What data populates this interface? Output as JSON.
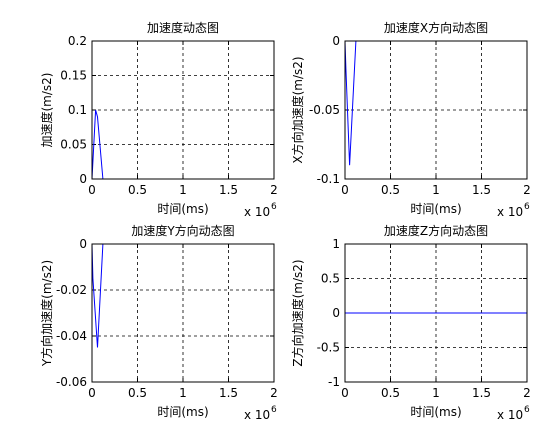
{
  "chart_data": [
    {
      "type": "line",
      "title": "加速度动态图",
      "xlabel": "时间(ms)",
      "ylabel": "加速度(m/s2)",
      "xlim": [
        0,
        2000000
      ],
      "ylim": [
        0,
        0.2
      ],
      "xticks": [
        "0",
        "0.5",
        "1",
        "1.5",
        "2"
      ],
      "x_exponent_base": "x 10",
      "x_exponent_power": "6",
      "yticks": [
        "0",
        "0.05",
        "0.1",
        "0.15",
        "0.2"
      ],
      "grid": true,
      "series": [
        {
          "color": "#0000ff",
          "x": [
            0,
            40000,
            60000,
            120000,
            2000000
          ],
          "y": [
            0,
            0.1,
            0.09,
            0,
            0
          ]
        }
      ]
    },
    {
      "type": "line",
      "title": "加速度X方向动态图",
      "xlabel": "时间(ms)",
      "ylabel": "X方向加速度(m/s2)",
      "xlim": [
        0,
        2000000
      ],
      "ylim": [
        -0.1,
        0
      ],
      "xticks": [
        "0",
        "0.5",
        "1",
        "1.5",
        "2"
      ],
      "x_exponent_base": "x 10",
      "x_exponent_power": "6",
      "yticks": [
        "-0.1",
        "-0.05",
        "0"
      ],
      "grid": true,
      "series": [
        {
          "color": "#0000ff",
          "x": [
            0,
            10000,
            50000,
            120000,
            2000000
          ],
          "y": [
            0,
            -0.02,
            -0.09,
            0,
            0
          ]
        }
      ]
    },
    {
      "type": "line",
      "title": "加速度Y方向动态图",
      "xlabel": "时间(ms)",
      "ylabel": "Y方向加速度(m/s2)",
      "xlim": [
        0,
        2000000
      ],
      "ylim": [
        -0.06,
        0
      ],
      "xticks": [
        "0",
        "0.5",
        "1",
        "1.5",
        "2"
      ],
      "x_exponent_base": "x 10",
      "x_exponent_power": "6",
      "yticks": [
        "-0.06",
        "-0.04",
        "-0.02",
        "0"
      ],
      "grid": true,
      "series": [
        {
          "color": "#0000ff",
          "x": [
            0,
            10000,
            60000,
            120000,
            2000000
          ],
          "y": [
            0,
            -0.015,
            -0.045,
            0,
            0
          ]
        }
      ]
    },
    {
      "type": "line",
      "title": "加速度Z方向动态图",
      "xlabel": "时间(ms)",
      "ylabel": "Z方向加速度(m/s2)",
      "xlim": [
        0,
        2000000
      ],
      "ylim": [
        -1,
        1
      ],
      "xticks": [
        "0",
        "0.5",
        "1",
        "1.5",
        "2"
      ],
      "x_exponent_base": "x 10",
      "x_exponent_power": "6",
      "yticks": [
        "-1",
        "-0.5",
        "0",
        "0.5",
        "1"
      ],
      "grid": true,
      "series": [
        {
          "color": "#0000ff",
          "x": [
            0,
            2000000
          ],
          "y": [
            0,
            0
          ]
        }
      ]
    }
  ]
}
